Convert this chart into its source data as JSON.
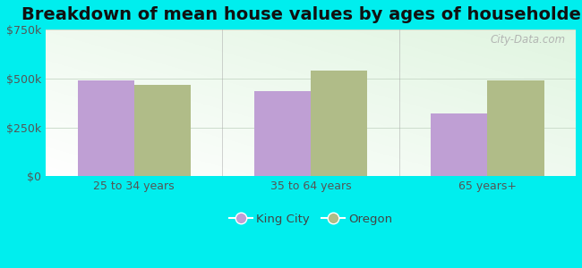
{
  "title": "Breakdown of mean house values by ages of householders",
  "categories": [
    "25 to 34 years",
    "35 to 64 years",
    "65 years+"
  ],
  "king_city_values": [
    490000,
    435000,
    320000
  ],
  "oregon_values": [
    465000,
    540000,
    490000
  ],
  "king_city_color": "#bf9fd4",
  "oregon_color": "#b0bc88",
  "king_city_label": "King City",
  "oregon_label": "Oregon",
  "ylim": [
    0,
    750000
  ],
  "yticks": [
    0,
    250000,
    500000,
    750000
  ],
  "background_color": "#00eeee",
  "bar_width": 0.32,
  "title_fontsize": 14,
  "watermark": "City-Data.com",
  "figure_size": [
    6.5,
    3.0
  ]
}
